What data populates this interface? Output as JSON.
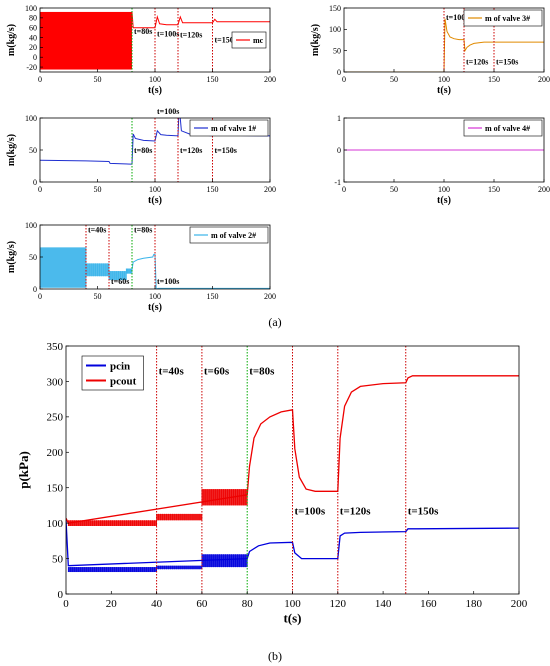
{
  "captions": {
    "a": "(a)",
    "b": "(b)"
  },
  "colors": {
    "mc": "#ff0000",
    "valve1": "#1f2fd0",
    "valve2": "#3ab4ea",
    "valve3": "#e08a00",
    "valve4": "#d633d6",
    "pcin": "#0000dd",
    "pcout": "#ee0000",
    "marker_red": "#cc0000",
    "marker_green": "#00aa00"
  },
  "chart_data": [
    {
      "id": "mc",
      "type": "line",
      "xlabel": "t(s)",
      "ylabel": "m(kg/s)",
      "xlim": [
        0,
        200
      ],
      "ylim": [
        -30,
        100
      ],
      "xticks": [
        0,
        50,
        100,
        150,
        200
      ],
      "yticks": [
        -20,
        0,
        20,
        40,
        60,
        80,
        100
      ],
      "series": [
        {
          "name": "mc",
          "color": "#ff0000",
          "oscillation": {
            "from": 0,
            "to": 80,
            "min": -25,
            "max": 92
          },
          "x": [
            80,
            81,
            100,
            102,
            104,
            110,
            120,
            122,
            124,
            130,
            150,
            152,
            154,
            160,
            200
          ],
          "y": [
            92,
            60,
            60,
            82,
            68,
            66,
            66,
            82,
            70,
            70,
            70,
            77,
            72,
            72,
            72
          ]
        }
      ],
      "markers": [
        {
          "x": 80,
          "label": "t=80s",
          "color": "green",
          "label_y": 47
        },
        {
          "x": 100,
          "label": "t=100s",
          "color": "red",
          "label_y": 42
        },
        {
          "x": 120,
          "label": "t=120s",
          "color": "red",
          "label_y": 40
        },
        {
          "x": 150,
          "label": "t=150s",
          "color": "red",
          "label_y": 30
        }
      ],
      "legend": {
        "position": "right-middle"
      }
    },
    {
      "id": "valve3",
      "type": "line",
      "xlabel": "t(s)",
      "ylabel": "m(kg/s)",
      "xlim": [
        0,
        200
      ],
      "ylim": [
        0,
        150
      ],
      "xticks": [
        0,
        50,
        100,
        150,
        200
      ],
      "yticks": [
        0,
        50,
        100,
        150
      ],
      "series": [
        {
          "name": "m of valve 3#",
          "color": "#e08a00",
          "x": [
            0,
            100,
            101,
            103,
            106,
            110,
            115,
            120,
            121,
            123,
            126,
            130,
            140,
            150,
            200
          ],
          "y": [
            0,
            0,
            125,
            95,
            82,
            78,
            76,
            76,
            50,
            58,
            63,
            67,
            70,
            70,
            70
          ]
        }
      ],
      "markers": [
        {
          "x": 100,
          "label": "t=100s",
          "color": "red",
          "label_y": 122
        },
        {
          "x": 120,
          "label": "t=120s",
          "color": "red",
          "label_y": 18
        },
        {
          "x": 150,
          "label": "t=150s",
          "color": "red",
          "label_y": 18
        }
      ],
      "legend": {
        "position": "top-right"
      }
    },
    {
      "id": "valve1",
      "type": "line",
      "xlabel": "t(s)",
      "ylabel": "m(kg/s)",
      "xlim": [
        0,
        200
      ],
      "ylim": [
        0,
        100
      ],
      "xticks": [
        0,
        50,
        100,
        150,
        200
      ],
      "yticks": [
        0,
        50,
        100
      ],
      "series": [
        {
          "name": "m of valve 1#",
          "color": "#1f2fd0",
          "x": [
            0,
            40,
            60,
            61,
            79,
            80,
            81,
            83,
            90,
            100,
            102,
            105,
            110,
            120,
            121,
            123,
            130,
            150,
            151,
            153,
            160,
            200
          ],
          "y": [
            34,
            33,
            32,
            29,
            28,
            28,
            75,
            68,
            65,
            64,
            80,
            74,
            73,
            72,
            118,
            80,
            75,
            72,
            80,
            74,
            73,
            72
          ]
        }
      ],
      "markers": [
        {
          "x": 80,
          "label": "t=80s",
          "color": "green",
          "label_y": 45
        },
        {
          "x": 100,
          "label": "t=100s",
          "color": "red",
          "label_y": 106
        },
        {
          "x": 120,
          "label": "t=120s",
          "color": "red",
          "label_y": 45
        },
        {
          "x": 150,
          "label": "t=150s",
          "color": "red",
          "label_y": 45
        }
      ],
      "legend": {
        "position": "top-right"
      }
    },
    {
      "id": "valve4",
      "type": "line",
      "xlabel": "t(s)",
      "ylabel": "",
      "xlim": [
        0,
        200
      ],
      "ylim": [
        -1,
        1
      ],
      "xticks": [
        0,
        50,
        100,
        150,
        200
      ],
      "yticks": [
        -1,
        0,
        1
      ],
      "series": [
        {
          "name": "m of valve 4#",
          "color": "#d633d6",
          "x": [
            0,
            200
          ],
          "y": [
            0,
            0
          ]
        }
      ],
      "markers": [],
      "legend": {
        "position": "top-right"
      }
    },
    {
      "id": "valve2",
      "type": "line",
      "xlabel": "t(s)",
      "ylabel": "m(kg/s)",
      "xlim": [
        0,
        200
      ],
      "ylim": [
        0,
        100
      ],
      "xticks": [
        0,
        50,
        100,
        150,
        200
      ],
      "yticks": [
        0,
        50,
        100
      ],
      "series": [
        {
          "name": "m of valve 2#",
          "color": "#3ab4ea",
          "bands": [
            {
              "from": 0,
              "to": 40,
              "min": 2,
              "max": 65
            },
            {
              "from": 40,
              "to": 60,
              "min": 20,
              "max": 40
            },
            {
              "from": 60,
              "to": 75,
              "min": 14,
              "max": 28
            },
            {
              "from": 75,
              "to": 80,
              "min": 24,
              "max": 32
            }
          ],
          "x": [
            80,
            81,
            85,
            90,
            98,
            99,
            100,
            101,
            103,
            110,
            200
          ],
          "y": [
            30,
            42,
            46,
            48,
            50,
            54,
            54,
            0,
            1,
            1,
            1
          ]
        }
      ],
      "markers": [
        {
          "x": 40,
          "label": "t=40s",
          "color": "red",
          "label_y": 88
        },
        {
          "x": 60,
          "label": "t=60s",
          "color": "red",
          "label_y": 8
        },
        {
          "x": 80,
          "label": "t=80s",
          "color": "green",
          "label_y": 88
        },
        {
          "x": 100,
          "label": "t=100s",
          "color": "red",
          "label_y": 8
        }
      ],
      "legend": {
        "position": "top-right"
      }
    },
    {
      "id": "pressure",
      "type": "line",
      "xlabel": "t(s)",
      "ylabel": "p(kPa)",
      "xlim": [
        0,
        200
      ],
      "ylim": [
        0,
        350
      ],
      "xticks": [
        0,
        20,
        40,
        60,
        80,
        100,
        120,
        140,
        160,
        180,
        200
      ],
      "yticks": [
        0,
        50,
        100,
        150,
        200,
        250,
        300,
        350
      ],
      "series": [
        {
          "name": "pcin",
          "color": "#0000dd",
          "bands": [
            {
              "from": 1,
              "to": 40,
              "min": 31,
              "max": 38
            },
            {
              "from": 40,
              "to": 60,
              "min": 35,
              "max": 40
            },
            {
              "from": 60,
              "to": 80,
              "min": 38,
              "max": 56
            }
          ],
          "x": [
            0,
            1,
            80,
            81,
            85,
            90,
            100,
            101,
            104,
            110,
            120,
            121,
            123,
            130,
            150,
            151,
            155,
            200
          ],
          "y": [
            105,
            40,
            50,
            60,
            68,
            72,
            73,
            58,
            50,
            50,
            50,
            82,
            86,
            87,
            88,
            92,
            92,
            93
          ]
        },
        {
          "name": "pcout",
          "color": "#ee0000",
          "bands": [
            {
              "from": 1,
              "to": 40,
              "min": 96,
              "max": 104
            },
            {
              "from": 40,
              "to": 60,
              "min": 104,
              "max": 113
            },
            {
              "from": 60,
              "to": 80,
              "min": 125,
              "max": 148
            }
          ],
          "x": [
            0,
            1,
            80,
            81,
            83,
            86,
            90,
            95,
            100,
            101,
            103,
            106,
            110,
            120,
            121,
            123,
            126,
            130,
            140,
            150,
            151,
            153,
            160,
            200
          ],
          "y": [
            107,
            100,
            140,
            180,
            220,
            240,
            250,
            257,
            260,
            205,
            165,
            148,
            145,
            145,
            220,
            265,
            285,
            293,
            297,
            298,
            305,
            308,
            308,
            308
          ]
        }
      ],
      "markers": [
        {
          "x": 40,
          "label": "t=40s",
          "color": "red",
          "label_y": 310
        },
        {
          "x": 60,
          "label": "t=60s",
          "color": "red",
          "label_y": 310
        },
        {
          "x": 80,
          "label": "t=80s",
          "color": "green",
          "label_y": 310
        },
        {
          "x": 100,
          "label": "t=100s",
          "color": "red",
          "label_y": 112
        },
        {
          "x": 120,
          "label": "t=120s",
          "color": "red",
          "label_y": 112
        },
        {
          "x": 150,
          "label": "t=150s",
          "color": "red",
          "label_y": 112
        }
      ],
      "legend": {
        "position": "top-left"
      }
    }
  ]
}
